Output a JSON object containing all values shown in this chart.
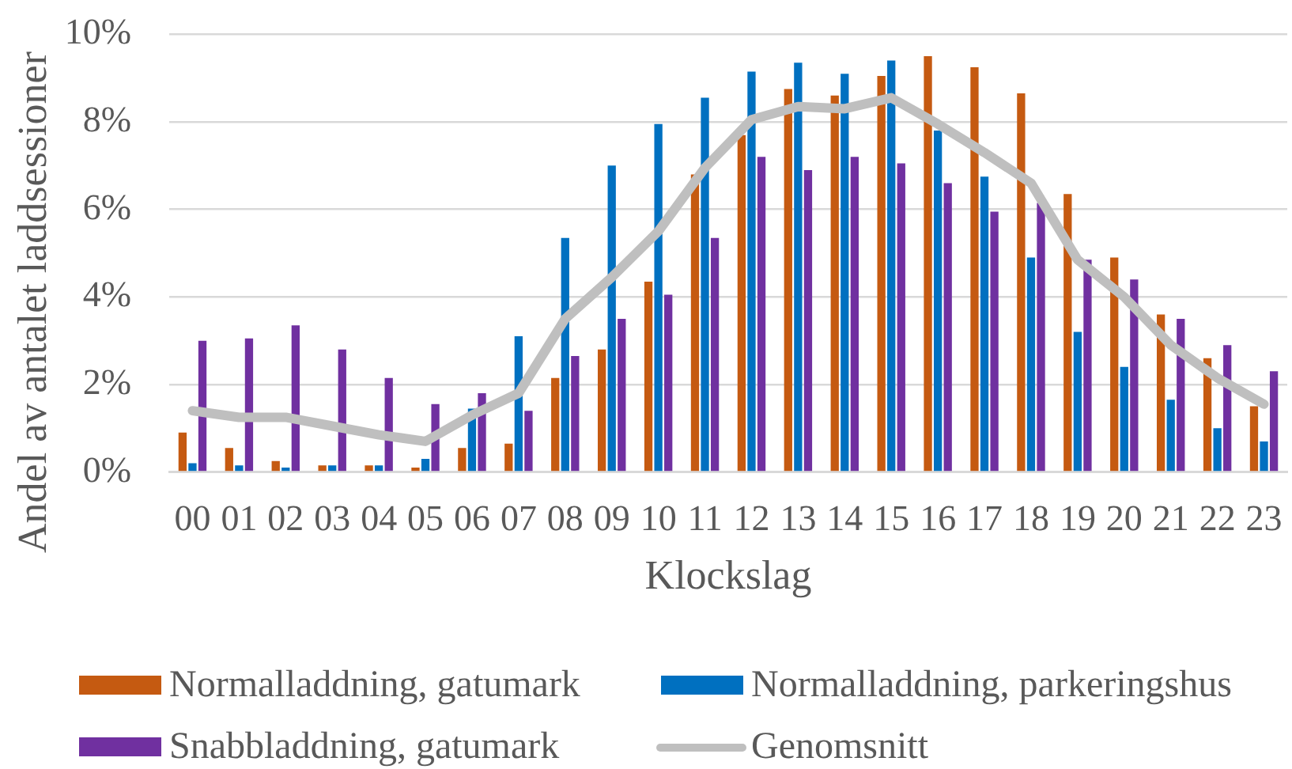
{
  "chart_data": {
    "type": "bar",
    "xlabel": "Klockslag",
    "ylabel": "Andel av antalet laddsessioner",
    "categories": [
      "00",
      "01",
      "02",
      "03",
      "04",
      "05",
      "06",
      "07",
      "08",
      "09",
      "10",
      "11",
      "12",
      "13",
      "14",
      "15",
      "16",
      "17",
      "18",
      "19",
      "20",
      "21",
      "22",
      "23"
    ],
    "series": [
      {
        "name": "Normalladdning, gatumark",
        "color": "#c55a11",
        "values": [
          0.9,
          0.55,
          0.25,
          0.15,
          0.15,
          0.1,
          0.55,
          0.65,
          2.15,
          2.8,
          4.35,
          6.8,
          7.7,
          8.75,
          8.6,
          9.05,
          9.5,
          9.25,
          8.65,
          6.35,
          4.9,
          3.6,
          2.6,
          1.5
        ]
      },
      {
        "name": "Normalladdning, parkeringshus",
        "color": "#0070c0",
        "values": [
          0.2,
          0.15,
          0.1,
          0.15,
          0.15,
          0.3,
          1.45,
          3.1,
          5.35,
          7.0,
          7.95,
          8.55,
          9.15,
          9.35,
          9.1,
          9.4,
          7.8,
          6.75,
          4.9,
          3.2,
          2.4,
          1.65,
          1.0,
          0.7
        ]
      },
      {
        "name": "Snabbladdning, gatumark",
        "color": "#7030a0",
        "values": [
          3.0,
          3.05,
          3.35,
          2.8,
          2.15,
          1.55,
          1.8,
          1.4,
          2.65,
          3.5,
          4.05,
          5.35,
          7.2,
          6.9,
          7.2,
          7.05,
          6.6,
          5.95,
          6.15,
          4.85,
          4.4,
          3.5,
          2.9,
          2.3
        ]
      },
      {
        "name": "Genomsnitt",
        "type": "line",
        "color": "#bfbfbf",
        "values": [
          1.4,
          1.25,
          1.25,
          1.05,
          0.85,
          0.7,
          1.3,
          1.8,
          3.5,
          4.45,
          5.5,
          6.95,
          8.05,
          8.35,
          8.3,
          8.55,
          7.95,
          7.3,
          6.6,
          4.85,
          4.0,
          2.9,
          2.15,
          1.55
        ]
      }
    ],
    "ylim": [
      0,
      10
    ],
    "yticks": [
      {
        "value": 0,
        "label": "0%"
      },
      {
        "value": 2,
        "label": "2%"
      },
      {
        "value": 4,
        "label": "4%"
      },
      {
        "value": 6,
        "label": "6%"
      },
      {
        "value": 8,
        "label": "8%"
      },
      {
        "value": 10,
        "label": "10%"
      }
    ],
    "grid": "y",
    "legend": "bottom"
  }
}
